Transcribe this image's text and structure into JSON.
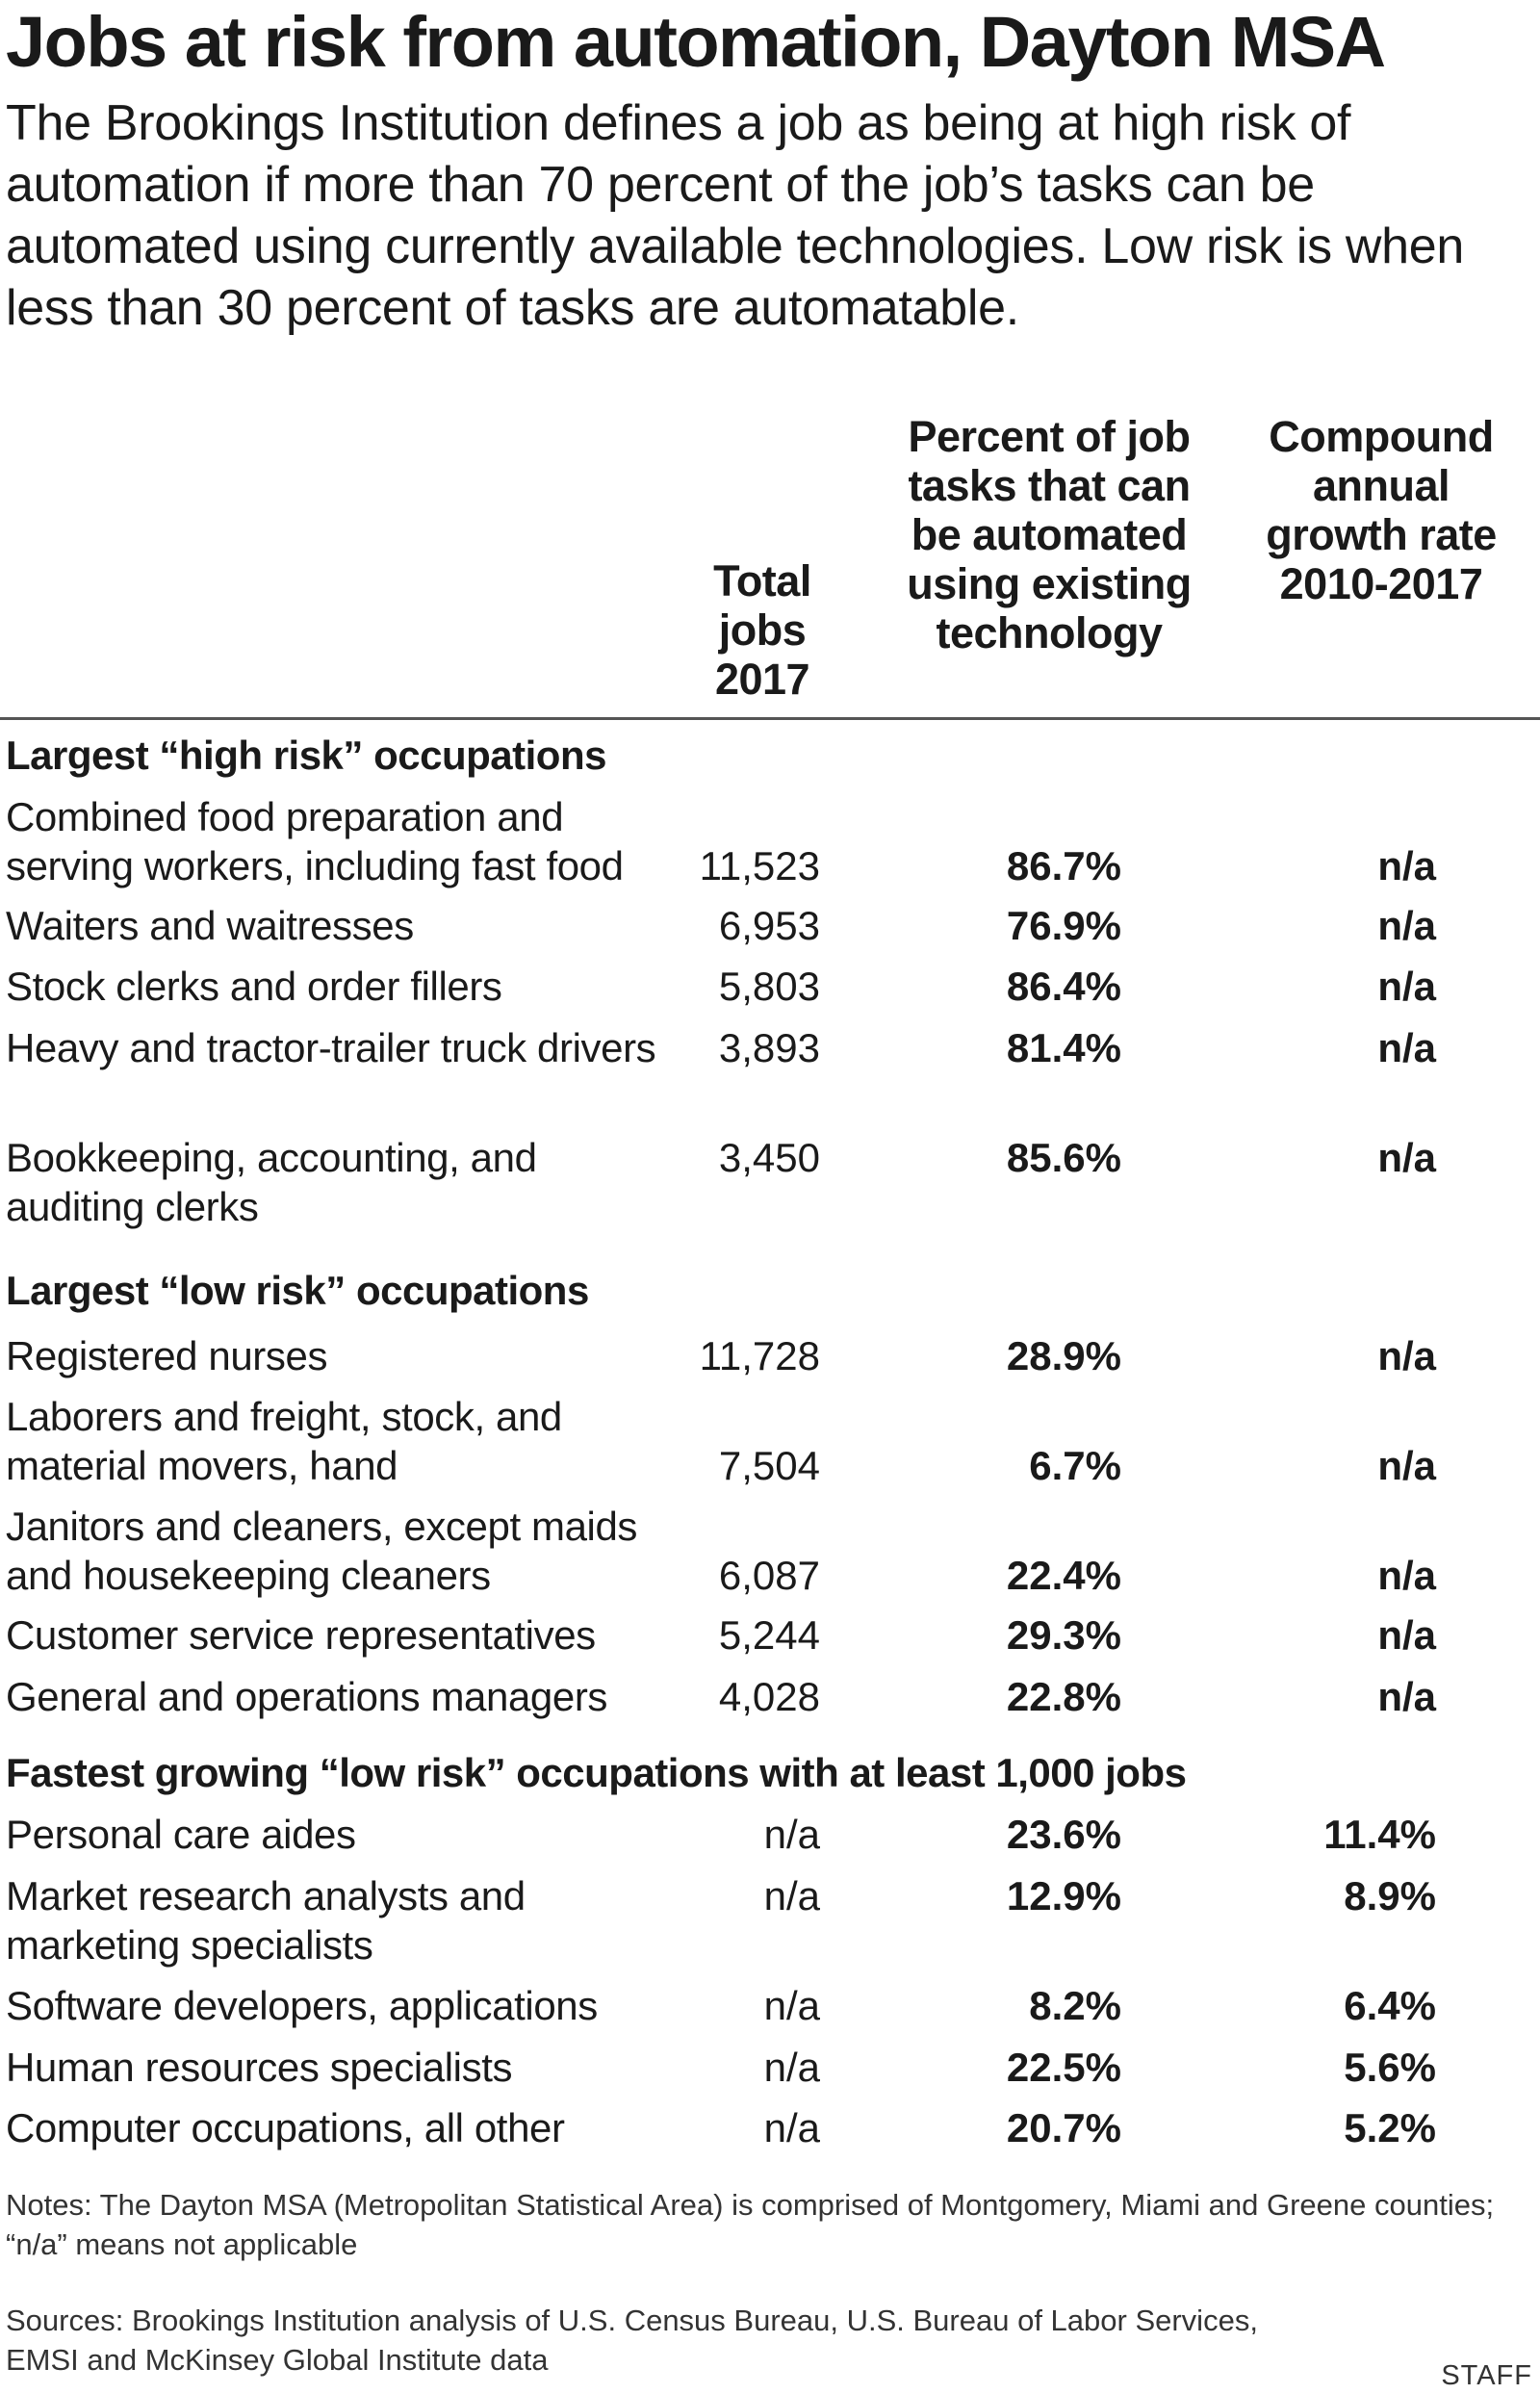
{
  "chart_data": {
    "type": "table",
    "title": "Jobs at risk from automation, Dayton MSA",
    "subtitle": "The Brookings Institution defines a job as being at high risk of automation if more than 70 percent of the job’s tasks can be automated using currently available technologies. Low risk is when less than 30 percent of tasks are automatable.",
    "columns": [
      "Total jobs 2017",
      "Percent of job tasks that can be automated using existing technology",
      "Compound annual growth rate 2010-2017"
    ],
    "sections": [
      {
        "title": "Largest “high risk” occupations",
        "rows": [
          {
            "occupation": "Combined food preparation and serving workers, including fast food",
            "total_jobs": "11,523",
            "pct_automatable": "86.7%",
            "cagr": "n/a"
          },
          {
            "occupation": "Waiters and waitresses",
            "total_jobs": "6,953",
            "pct_automatable": "76.9%",
            "cagr": "n/a"
          },
          {
            "occupation": "Stock clerks and order fillers",
            "total_jobs": "5,803",
            "pct_automatable": "86.4%",
            "cagr": "n/a"
          },
          {
            "occupation": "Heavy and tractor-trailer truck drivers",
            "total_jobs": "3,893",
            "pct_automatable": "81.4%",
            "cagr": "n/a"
          },
          {
            "occupation": "Bookkeeping, accounting, and auditing clerks",
            "total_jobs": "3,450",
            "pct_automatable": "85.6%",
            "cagr": "n/a"
          }
        ]
      },
      {
        "title": "Largest “low risk” occupations",
        "rows": [
          {
            "occupation": "Registered nurses",
            "total_jobs": "11,728",
            "pct_automatable": "28.9%",
            "cagr": "n/a"
          },
          {
            "occupation": "Laborers and freight, stock, and material movers, hand",
            "total_jobs": "7,504",
            "pct_automatable": "6.7%",
            "cagr": "n/a"
          },
          {
            "occupation": "Janitors and cleaners, except maids and housekeeping cleaners",
            "total_jobs": "6,087",
            "pct_automatable": "22.4%",
            "cagr": "n/a"
          },
          {
            "occupation": "Customer service representatives",
            "total_jobs": "5,244",
            "pct_automatable": "29.3%",
            "cagr": "n/a"
          },
          {
            "occupation": "General and operations managers",
            "total_jobs": "4,028",
            "pct_automatable": "22.8%",
            "cagr": "n/a"
          }
        ]
      },
      {
        "title": "Fastest growing “low risk” occupations with at least 1,000 jobs",
        "rows": [
          {
            "occupation": "Personal care aides",
            "total_jobs": "n/a",
            "pct_automatable": "23.6%",
            "cagr": "11.4%"
          },
          {
            "occupation": "Market research analysts and marketing specialists",
            "total_jobs": "n/a",
            "pct_automatable": "12.9%",
            "cagr": "8.9%"
          },
          {
            "occupation": "Software developers, applications",
            "total_jobs": "n/a",
            "pct_automatable": "8.2%",
            "cagr": "6.4%"
          },
          {
            "occupation": "Human resources specialists",
            "total_jobs": "n/a",
            "pct_automatable": "22.5%",
            "cagr": "5.6%"
          },
          {
            "occupation": "Computer occupations, all other",
            "total_jobs": "n/a",
            "pct_automatable": "20.7%",
            "cagr": "5.2%"
          }
        ]
      }
    ],
    "notes": "Notes: The Dayton MSA (Metropolitan Statistical Area) is comprised of Montgomery, Miami and Greene counties; “n/a” means not applicable",
    "sources": "Sources: Brookings Institution analysis of U.S. Census Bureau, U.S. Bureau of Labor Services, EMSI and McKinsey Global Institute data",
    "credit": "STAFF"
  }
}
